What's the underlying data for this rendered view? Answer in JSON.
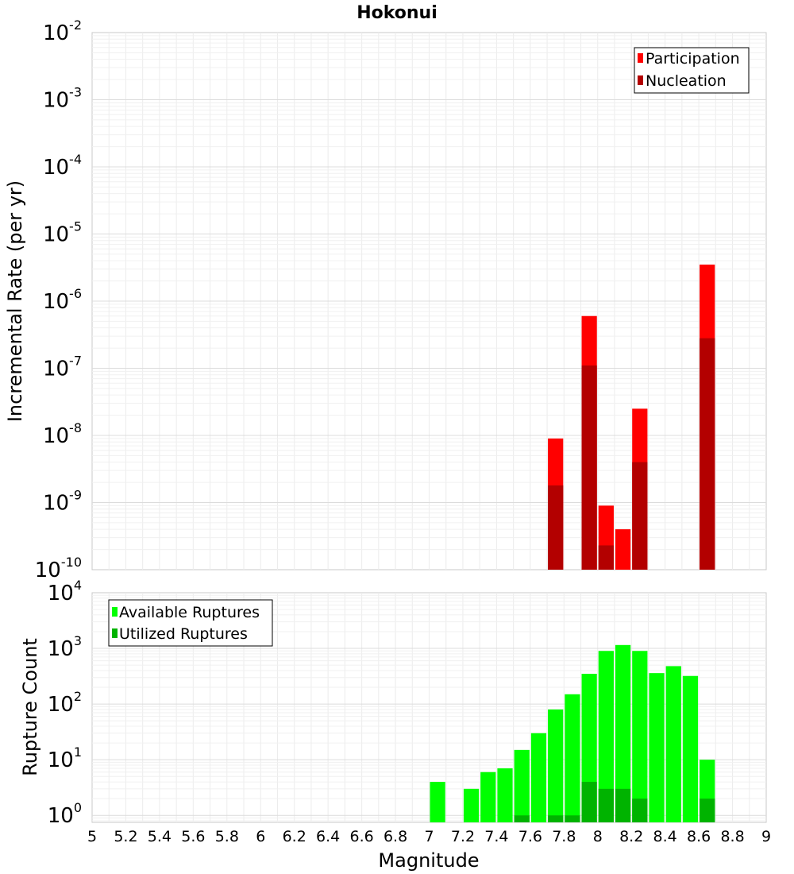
{
  "chart_data": [
    {
      "type": "bar",
      "title": "Hokonui",
      "xlabel": "",
      "ylabel": "Incremental Rate (per yr)",
      "xlim": [
        5,
        9
      ],
      "ylim": [
        1e-10,
        0.01
      ],
      "yscale": "log",
      "ytick_bases": [
        "10",
        "10",
        "10",
        "10",
        "10",
        "10",
        "10",
        "10",
        "10"
      ],
      "ytick_exponents": [
        "-10",
        "-9",
        "-8",
        "-7",
        "-6",
        "-5",
        "-4",
        "-3",
        "-2"
      ],
      "grid": true,
      "legend_position": "top-right",
      "x": [
        7.75,
        7.95,
        8.05,
        8.15,
        8.25,
        8.65
      ],
      "series": [
        {
          "name": "Participation",
          "color": "#ff0000",
          "values": [
            9e-09,
            6e-07,
            9e-10,
            4e-10,
            2.5e-08,
            3.5e-06
          ]
        },
        {
          "name": "Nucleation",
          "color": "#b30000",
          "values": [
            1.8e-09,
            1.1e-07,
            2.3e-10,
            0,
            4e-09,
            2.8e-07
          ]
        }
      ]
    },
    {
      "type": "bar",
      "title": "",
      "xlabel": "Magnitude",
      "ylabel": "Rupture Count",
      "xlim": [
        5,
        9
      ],
      "ylim": [
        0.75,
        10000
      ],
      "yscale": "log",
      "ytick_bases": [
        "10",
        "10",
        "10",
        "10",
        "10"
      ],
      "ytick_exponents": [
        "0",
        "1",
        "2",
        "3",
        "4"
      ],
      "xticks": [
        "5",
        "5.2",
        "5.4",
        "5.6",
        "5.8",
        "6",
        "6.2",
        "6.4",
        "6.6",
        "6.8",
        "7",
        "7.2",
        "7.4",
        "7.6",
        "7.8",
        "8",
        "8.2",
        "8.4",
        "8.6",
        "8.8",
        "9"
      ],
      "grid": true,
      "legend_position": "top-left",
      "x": [
        7.05,
        7.25,
        7.35,
        7.45,
        7.55,
        7.65,
        7.75,
        7.85,
        7.95,
        8.05,
        8.15,
        8.25,
        8.35,
        8.45,
        8.55,
        8.65
      ],
      "series": [
        {
          "name": "Available Ruptures",
          "color": "#00ff00",
          "values": [
            4,
            3,
            6,
            7,
            15,
            30,
            80,
            150,
            350,
            900,
            1150,
            900,
            360,
            480,
            320,
            10
          ]
        },
        {
          "name": "Utilized Ruptures",
          "color": "#00b300",
          "values": [
            0,
            0,
            0,
            0,
            1,
            0,
            1,
            1,
            4,
            3,
            3,
            2,
            0,
            0,
            0,
            2
          ]
        }
      ]
    }
  ]
}
